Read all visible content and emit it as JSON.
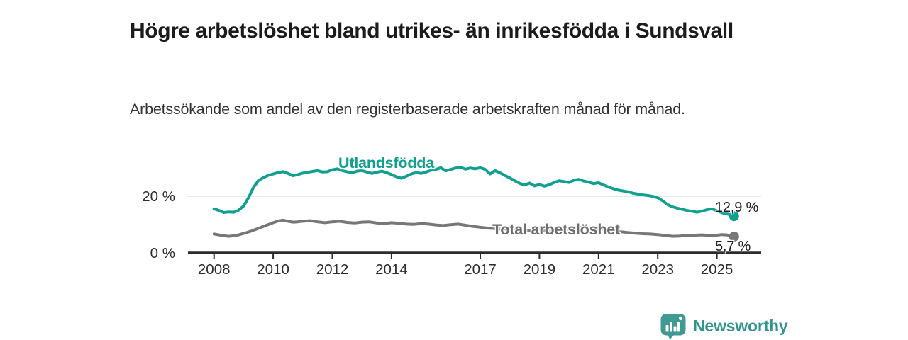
{
  "header": {
    "title": "Högre arbetslöshet bland utrikes- än inrikesfödda i Sundsvall",
    "subtitle": "Arbetssökande som andel av den registerbaserade arbetskraften månad för månad."
  },
  "chart_data": {
    "type": "line",
    "title": "Högre arbetslöshet bland utrikes- än inrikesfödda i Sundsvall",
    "unit": "%",
    "grid": "horizontal-only",
    "x_range": [
      2008,
      2025.67
    ],
    "ylim": [
      0,
      36
    ],
    "x_ticks": [
      2008,
      2010,
      2012,
      2014,
      2017,
      2019,
      2021,
      2023,
      2025
    ],
    "y_ticks": [
      {
        "value": 0,
        "label": "0 %"
      },
      {
        "value": 20,
        "label": "20 %"
      }
    ],
    "colors": {
      "axis": "#2b2b2b",
      "gridline": "#d9d9d9",
      "tick_text": "#2d2d2d"
    },
    "series": [
      {
        "name": "Utlandsfödda",
        "color": "#11a08f",
        "end_label": "12,9 %",
        "last_value": 12.9,
        "points": [
          [
            2008.0,
            15.5
          ],
          [
            2008.17,
            14.9
          ],
          [
            2008.33,
            14.2
          ],
          [
            2008.5,
            14.4
          ],
          [
            2008.67,
            14.3
          ],
          [
            2008.83,
            15.0
          ],
          [
            2009.0,
            16.5
          ],
          [
            2009.17,
            19.5
          ],
          [
            2009.33,
            23.0
          ],
          [
            2009.5,
            25.5
          ],
          [
            2009.67,
            26.5
          ],
          [
            2009.83,
            27.3
          ],
          [
            2010.0,
            27.8
          ],
          [
            2010.17,
            28.3
          ],
          [
            2010.33,
            28.6
          ],
          [
            2010.5,
            28.0
          ],
          [
            2010.67,
            27.2
          ],
          [
            2010.83,
            27.6
          ],
          [
            2011.0,
            28.1
          ],
          [
            2011.17,
            28.4
          ],
          [
            2011.33,
            28.7
          ],
          [
            2011.5,
            29.0
          ],
          [
            2011.67,
            28.5
          ],
          [
            2011.83,
            28.6
          ],
          [
            2012.0,
            29.3
          ],
          [
            2012.17,
            29.6
          ],
          [
            2012.33,
            29.0
          ],
          [
            2012.5,
            28.6
          ],
          [
            2012.67,
            28.2
          ],
          [
            2012.83,
            28.8
          ],
          [
            2013.0,
            29.0
          ],
          [
            2013.17,
            28.5
          ],
          [
            2013.33,
            28.0
          ],
          [
            2013.5,
            28.4
          ],
          [
            2013.67,
            28.8
          ],
          [
            2013.83,
            28.3
          ],
          [
            2014.0,
            27.6
          ],
          [
            2014.17,
            26.8
          ],
          [
            2014.33,
            26.3
          ],
          [
            2014.5,
            27.0
          ],
          [
            2014.67,
            27.8
          ],
          [
            2014.83,
            28.3
          ],
          [
            2015.0,
            28.0
          ],
          [
            2015.17,
            28.5
          ],
          [
            2015.33,
            29.1
          ],
          [
            2015.5,
            29.4
          ],
          [
            2015.67,
            30.0
          ],
          [
            2015.83,
            28.9
          ],
          [
            2016.0,
            29.4
          ],
          [
            2016.17,
            29.9
          ],
          [
            2016.33,
            30.2
          ],
          [
            2016.5,
            29.5
          ],
          [
            2016.67,
            29.9
          ],
          [
            2016.83,
            29.6
          ],
          [
            2017.0,
            30.0
          ],
          [
            2017.17,
            29.4
          ],
          [
            2017.33,
            27.8
          ],
          [
            2017.5,
            29.0
          ],
          [
            2017.67,
            28.2
          ],
          [
            2017.83,
            27.3
          ],
          [
            2018.0,
            26.4
          ],
          [
            2018.17,
            25.4
          ],
          [
            2018.33,
            24.5
          ],
          [
            2018.5,
            23.9
          ],
          [
            2018.67,
            24.6
          ],
          [
            2018.83,
            23.6
          ],
          [
            2019.0,
            24.1
          ],
          [
            2019.17,
            23.5
          ],
          [
            2019.33,
            24.0
          ],
          [
            2019.5,
            24.8
          ],
          [
            2019.67,
            25.4
          ],
          [
            2019.83,
            25.1
          ],
          [
            2020.0,
            24.8
          ],
          [
            2020.17,
            25.6
          ],
          [
            2020.33,
            25.9
          ],
          [
            2020.5,
            25.3
          ],
          [
            2020.67,
            24.9
          ],
          [
            2020.83,
            24.4
          ],
          [
            2021.0,
            24.7
          ],
          [
            2021.17,
            23.9
          ],
          [
            2021.33,
            23.2
          ],
          [
            2021.5,
            22.6
          ],
          [
            2021.67,
            22.1
          ],
          [
            2021.83,
            21.8
          ],
          [
            2022.0,
            21.5
          ],
          [
            2022.17,
            21.0
          ],
          [
            2022.33,
            20.7
          ],
          [
            2022.5,
            20.4
          ],
          [
            2022.67,
            20.2
          ],
          [
            2022.83,
            19.9
          ],
          [
            2023.0,
            19.4
          ],
          [
            2023.17,
            18.3
          ],
          [
            2023.33,
            17.0
          ],
          [
            2023.5,
            16.2
          ],
          [
            2023.67,
            15.7
          ],
          [
            2023.83,
            15.3
          ],
          [
            2024.0,
            14.9
          ],
          [
            2024.17,
            14.6
          ],
          [
            2024.33,
            14.3
          ],
          [
            2024.5,
            14.7
          ],
          [
            2024.67,
            15.2
          ],
          [
            2024.83,
            15.5
          ],
          [
            2025.0,
            14.8
          ],
          [
            2025.17,
            14.1
          ],
          [
            2025.33,
            13.7
          ],
          [
            2025.5,
            13.3
          ],
          [
            2025.58,
            12.9
          ]
        ]
      },
      {
        "name": "Total arbetslöshet",
        "color": "#77777b",
        "end_label": "5,7 %",
        "last_value": 5.7,
        "points": [
          [
            2008.0,
            6.6
          ],
          [
            2008.17,
            6.3
          ],
          [
            2008.33,
            6.0
          ],
          [
            2008.5,
            5.8
          ],
          [
            2008.67,
            6.0
          ],
          [
            2008.83,
            6.3
          ],
          [
            2009.0,
            6.8
          ],
          [
            2009.25,
            7.6
          ],
          [
            2009.5,
            8.6
          ],
          [
            2009.75,
            9.6
          ],
          [
            2010.0,
            10.6
          ],
          [
            2010.17,
            11.2
          ],
          [
            2010.33,
            11.5
          ],
          [
            2010.5,
            11.1
          ],
          [
            2010.67,
            10.8
          ],
          [
            2010.83,
            10.9
          ],
          [
            2011.0,
            11.1
          ],
          [
            2011.25,
            11.3
          ],
          [
            2011.5,
            10.9
          ],
          [
            2011.75,
            10.6
          ],
          [
            2012.0,
            10.9
          ],
          [
            2012.25,
            11.1
          ],
          [
            2012.5,
            10.7
          ],
          [
            2012.75,
            10.5
          ],
          [
            2013.0,
            10.8
          ],
          [
            2013.25,
            10.9
          ],
          [
            2013.5,
            10.5
          ],
          [
            2013.75,
            10.3
          ],
          [
            2014.0,
            10.6
          ],
          [
            2014.25,
            10.4
          ],
          [
            2014.5,
            10.1
          ],
          [
            2014.75,
            10.0
          ],
          [
            2015.0,
            10.3
          ],
          [
            2015.25,
            10.1
          ],
          [
            2015.5,
            9.8
          ],
          [
            2015.75,
            9.6
          ],
          [
            2016.0,
            9.9
          ],
          [
            2016.25,
            10.1
          ],
          [
            2016.5,
            9.7
          ],
          [
            2016.75,
            9.3
          ],
          [
            2017.0,
            9.0
          ],
          [
            2017.25,
            8.7
          ],
          [
            2017.5,
            8.5
          ],
          [
            2017.75,
            8.3
          ],
          [
            2018.0,
            8.5
          ],
          [
            2018.25,
            8.2
          ],
          [
            2018.5,
            7.9
          ],
          [
            2018.75,
            7.8
          ],
          [
            2019.0,
            8.0
          ],
          [
            2019.25,
            7.8
          ],
          [
            2019.5,
            8.1
          ],
          [
            2019.75,
            8.3
          ],
          [
            2020.0,
            8.2
          ],
          [
            2020.25,
            8.8
          ],
          [
            2020.5,
            9.0
          ],
          [
            2020.75,
            8.7
          ],
          [
            2021.0,
            8.5
          ],
          [
            2021.25,
            8.2
          ],
          [
            2021.5,
            7.8
          ],
          [
            2021.75,
            7.4
          ],
          [
            2022.0,
            7.1
          ],
          [
            2022.25,
            6.9
          ],
          [
            2022.5,
            6.7
          ],
          [
            2022.75,
            6.6
          ],
          [
            2023.0,
            6.4
          ],
          [
            2023.25,
            6.1
          ],
          [
            2023.5,
            5.8
          ],
          [
            2023.75,
            5.9
          ],
          [
            2024.0,
            6.1
          ],
          [
            2024.25,
            6.2
          ],
          [
            2024.5,
            6.3
          ],
          [
            2024.75,
            6.1
          ],
          [
            2025.0,
            6.2
          ],
          [
            2025.17,
            6.4
          ],
          [
            2025.33,
            6.3
          ],
          [
            2025.5,
            6.0
          ],
          [
            2025.58,
            5.7
          ]
        ]
      }
    ]
  },
  "footer": {
    "brand": "Newsworthy"
  }
}
